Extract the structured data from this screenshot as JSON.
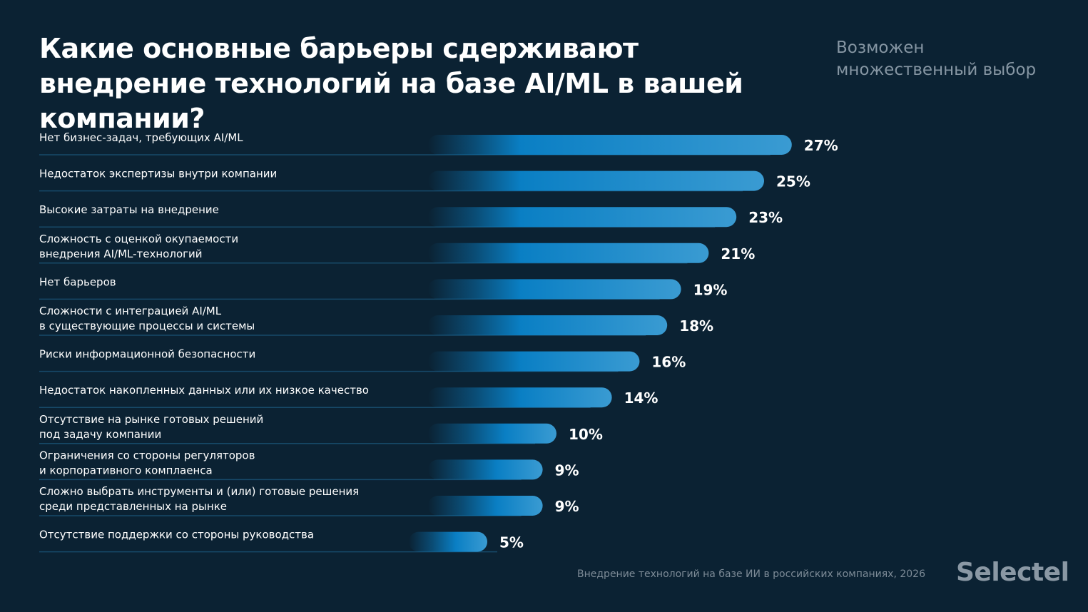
{
  "title": "Какие основные барьеры сдерживают внедрение технологий на базе AI/ML в вашей компании?",
  "note": "Возможен множественный выбор",
  "source": "Внедрение технологий на базе ИИ в российских компаниях, 2026",
  "logo": "Selectel",
  "colors": {
    "background": "#0b2233",
    "bar_start": "#0a7fc4",
    "bar_end": "#3a9bd2",
    "separator": "#174a6a"
  },
  "chart_data": {
    "type": "bar",
    "orientation": "horizontal",
    "title": "Какие основные барьеры сдерживают внедрение технологий на базе AI/ML в вашей компании?",
    "categories": [
      [
        "Нет бизнес-задач, требующих AI/ML"
      ],
      [
        "Недостаток экспертизы внутри компании"
      ],
      [
        "Высокие затраты на внедрение"
      ],
      [
        "Сложность с оценкой окупаемости",
        "внедрения AI/ML-технологий"
      ],
      [
        "Нет барьеров"
      ],
      [
        "Сложности с интеграцией AI/ML",
        "в существующие процессы и системы"
      ],
      [
        "Риски информационной безопасности"
      ],
      [
        "Недостаток накопленных данных или их низкое качество"
      ],
      [
        "Отсутствие на рынке готовых решений",
        "под задачу компании"
      ],
      [
        "Ограничения со стороны регуляторов",
        "и корпоративного комплаенса"
      ],
      [
        "Сложно выбрать инструменты и (или) готовые решения",
        "среди представленных на рынке"
      ],
      [
        "Отсутствие поддержки со стороны руководства"
      ]
    ],
    "values": [
      27,
      25,
      23,
      21,
      19,
      18,
      16,
      14,
      10,
      9,
      9,
      5
    ],
    "labels": [
      "27%",
      "25%",
      "23%",
      "21%",
      "19%",
      "18%",
      "16%",
      "14%",
      "10%",
      "9%",
      "9%",
      "5%"
    ],
    "unit": "%",
    "grid": false,
    "legend": "none"
  }
}
